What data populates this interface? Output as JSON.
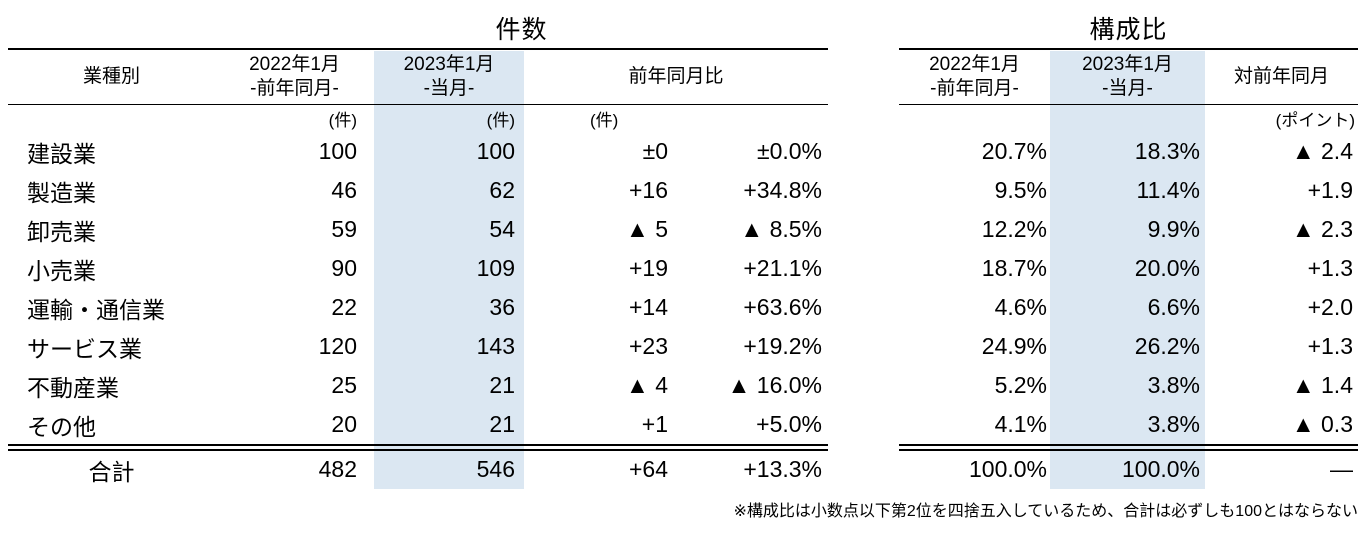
{
  "colors": {
    "highlight": "#dbe7f2",
    "rule": "#000000",
    "text": "#000000"
  },
  "count_section": {
    "title": "件数",
    "headers": {
      "industry": "業種別",
      "col2022_line1": "2022年1月",
      "col2022_line2": "-前年同月-",
      "col2023_line1": "2023年1月",
      "col2023_line2": "-当月-",
      "yoy": "前年同月比"
    },
    "units": {
      "col2022": "(件)",
      "col2023": "(件)",
      "yoy": "(件)"
    }
  },
  "ratio_section": {
    "title": "構成比",
    "headers": {
      "col2022_line1": "2022年1月",
      "col2022_line2": "-前年同月-",
      "col2023_line1": "2023年1月",
      "col2023_line2": "-当月-",
      "vs_prev": "対前年同月"
    },
    "units": {
      "vs_prev": "(ポイント)"
    }
  },
  "rows": [
    {
      "name": "建設業",
      "c2022": "100",
      "c2023": "100",
      "diff": "±0",
      "pct": "±0.0%",
      "r2022": "20.7%",
      "r2023": "18.3%",
      "pt": "▲ 2.4"
    },
    {
      "name": "製造業",
      "c2022": "46",
      "c2023": "62",
      "diff": "+16",
      "pct": "+34.8%",
      "r2022": "9.5%",
      "r2023": "11.4%",
      "pt": "+1.9"
    },
    {
      "name": "卸売業",
      "c2022": "59",
      "c2023": "54",
      "diff": "▲ 5",
      "pct": "▲ 8.5%",
      "r2022": "12.2%",
      "r2023": "9.9%",
      "pt": "▲ 2.3"
    },
    {
      "name": "小売業",
      "c2022": "90",
      "c2023": "109",
      "diff": "+19",
      "pct": "+21.1%",
      "r2022": "18.7%",
      "r2023": "20.0%",
      "pt": "+1.3"
    },
    {
      "name": "運輸・通信業",
      "c2022": "22",
      "c2023": "36",
      "diff": "+14",
      "pct": "+63.6%",
      "r2022": "4.6%",
      "r2023": "6.6%",
      "pt": "+2.0"
    },
    {
      "name": "サービス業",
      "c2022": "120",
      "c2023": "143",
      "diff": "+23",
      "pct": "+19.2%",
      "r2022": "24.9%",
      "r2023": "26.2%",
      "pt": "+1.3"
    },
    {
      "name": "不動産業",
      "c2022": "25",
      "c2023": "21",
      "diff": "▲ 4",
      "pct": "▲ 16.0%",
      "r2022": "5.2%",
      "r2023": "3.8%",
      "pt": "▲ 1.4"
    },
    {
      "name": "その他",
      "c2022": "20",
      "c2023": "21",
      "diff": "+1",
      "pct": "+5.0%",
      "r2022": "4.1%",
      "r2023": "3.8%",
      "pt": "▲ 0.3"
    }
  ],
  "total": {
    "name": "合計",
    "c2022": "482",
    "c2023": "546",
    "diff": "+64",
    "pct": "+13.3%",
    "r2022": "100.0%",
    "r2023": "100.0%",
    "pt": "―"
  },
  "footnote": "※構成比は小数点以下第2位を四捨五入しているため、合計は必ずしも100とはならない"
}
